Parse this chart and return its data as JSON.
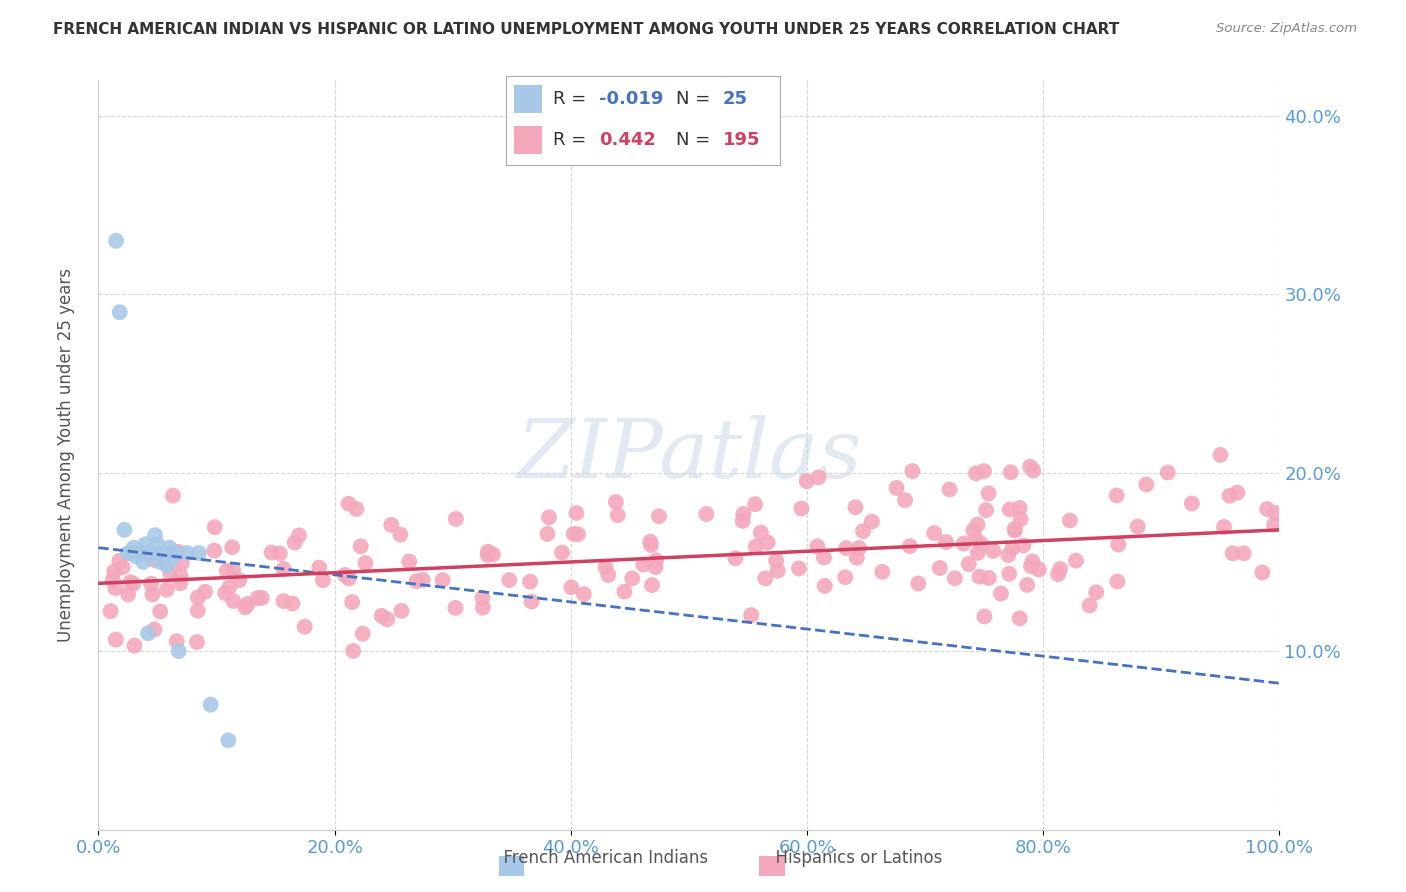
{
  "title": "FRENCH AMERICAN INDIAN VS HISPANIC OR LATINO UNEMPLOYMENT AMONG YOUTH UNDER 25 YEARS CORRELATION CHART",
  "source": "Source: ZipAtlas.com",
  "watermark": "ZIPatlas",
  "legend": {
    "blue_R": "-0.019",
    "blue_N": "25",
    "pink_R": "0.442",
    "pink_N": "195"
  },
  "blue_color": "#a8c8e8",
  "pink_color": "#f4a8bb",
  "blue_line_color": "#4472c4",
  "pink_line_color": "#d04060",
  "xlim": [
    0.0,
    1.0
  ],
  "ylim": [
    0.0,
    0.42
  ],
  "blue_trend_y0": 0.158,
  "blue_trend_y1": 0.082,
  "pink_trend_y0": 0.138,
  "pink_trend_y1": 0.168,
  "grid_color": "#cccccc",
  "axis_tick_color": "#5b9bd5",
  "ylabel": "Unemployment Among Youth under 25 years",
  "yticks": [
    0.1,
    0.2,
    0.3,
    0.4
  ],
  "ytick_labels": [
    "10.0%",
    "20.0%",
    "30.0%",
    "40.0%"
  ],
  "xticks": [
    0.0,
    0.2,
    0.4,
    0.6,
    0.8,
    1.0
  ],
  "xtick_labels": [
    "0.0%",
    "20.0%",
    "40.0%",
    "60.0%",
    "80.0%",
    "100.0%"
  ]
}
